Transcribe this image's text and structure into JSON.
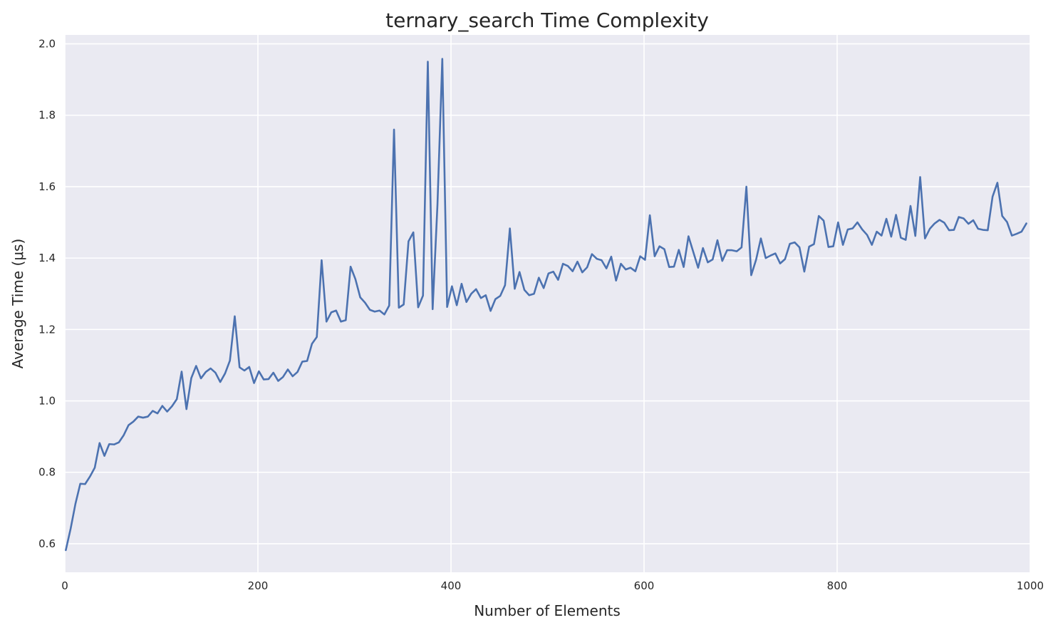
{
  "chart_data": {
    "type": "line",
    "title": "ternary_search Time Complexity",
    "xlabel": "Number of Elements",
    "ylabel": "Average Time (μs)",
    "xlim": [
      0,
      1000
    ],
    "ylim": [
      0.52,
      2.025
    ],
    "xticks": [
      0,
      200,
      400,
      600,
      800,
      1000
    ],
    "yticks": [
      0.6,
      0.8,
      1.0,
      1.2,
      1.4,
      1.6,
      1.8,
      2.0
    ],
    "grid": true,
    "colors": {
      "plot_background": "#EAEAF2",
      "grid": "#FFFFFF",
      "line": "#4C72B0"
    },
    "series": [
      {
        "x": [
          1,
          6,
          11,
          16,
          21,
          26,
          31,
          36,
          41,
          46,
          51,
          56,
          61,
          66,
          71,
          76,
          81,
          86,
          91,
          96,
          101,
          106,
          111,
          116,
          121,
          126,
          131,
          136,
          141,
          146,
          151,
          156,
          161,
          166,
          171,
          176,
          181,
          186,
          191,
          196,
          201,
          206,
          211,
          216,
          221,
          226,
          231,
          236,
          241,
          246,
          251,
          256,
          261,
          266,
          271,
          276,
          281,
          286,
          291,
          296,
          301,
          306,
          311,
          316,
          321,
          326,
          331,
          336,
          341,
          346,
          351,
          356,
          361,
          366,
          371,
          376,
          381,
          386,
          391,
          396,
          401,
          406,
          411,
          416,
          421,
          426,
          431,
          436,
          441,
          446,
          451,
          456,
          461,
          466,
          471,
          476,
          481,
          486,
          491,
          496,
          501,
          506,
          511,
          516,
          521,
          526,
          531,
          536,
          541,
          546,
          551,
          556,
          561,
          566,
          571,
          576,
          581,
          586,
          591,
          596,
          601,
          606,
          611,
          616,
          621,
          626,
          631,
          636,
          641,
          646,
          651,
          656,
          661,
          666,
          671,
          676,
          681,
          686,
          691,
          696,
          701,
          706,
          711,
          716,
          721,
          726,
          731,
          736,
          741,
          746,
          751,
          756,
          761,
          766,
          771,
          776,
          781,
          786,
          791,
          796,
          801,
          806,
          811,
          816,
          821,
          826,
          831,
          836,
          841,
          846,
          851,
          856,
          861,
          866,
          871,
          876,
          881,
          886,
          891,
          896,
          901,
          906,
          911,
          916,
          921,
          926,
          931,
          936,
          941,
          946,
          951,
          956,
          961,
          966,
          971,
          976,
          981,
          986,
          991,
          996
        ],
        "y": [
          0.582,
          0.642,
          0.712,
          0.768,
          0.767,
          0.788,
          0.813,
          0.882,
          0.846,
          0.879,
          0.878,
          0.884,
          0.904,
          0.932,
          0.942,
          0.956,
          0.953,
          0.956,
          0.972,
          0.965,
          0.986,
          0.97,
          0.985,
          1.005,
          1.082,
          0.977,
          1.064,
          1.098,
          1.063,
          1.081,
          1.091,
          1.079,
          1.053,
          1.077,
          1.113,
          1.237,
          1.094,
          1.085,
          1.095,
          1.05,
          1.083,
          1.06,
          1.061,
          1.079,
          1.056,
          1.067,
          1.088,
          1.069,
          1.081,
          1.11,
          1.112,
          1.16,
          1.179,
          1.394,
          1.222,
          1.248,
          1.253,
          1.222,
          1.226,
          1.376,
          1.341,
          1.29,
          1.275,
          1.255,
          1.25,
          1.253,
          1.242,
          1.267,
          1.76,
          1.261,
          1.27,
          1.447,
          1.472,
          1.262,
          1.295,
          1.95,
          1.257,
          1.55,
          1.958,
          1.263,
          1.321,
          1.268,
          1.328,
          1.277,
          1.3,
          1.313,
          1.288,
          1.296,
          1.252,
          1.285,
          1.294,
          1.324,
          1.483,
          1.314,
          1.361,
          1.311,
          1.296,
          1.3,
          1.345,
          1.316,
          1.357,
          1.362,
          1.339,
          1.384,
          1.378,
          1.363,
          1.39,
          1.36,
          1.374,
          1.411,
          1.398,
          1.394,
          1.371,
          1.404,
          1.337,
          1.384,
          1.368,
          1.373,
          1.363,
          1.405,
          1.395,
          1.52,
          1.405,
          1.433,
          1.425,
          1.375,
          1.376,
          1.423,
          1.375,
          1.461,
          1.417,
          1.373,
          1.428,
          1.388,
          1.396,
          1.45,
          1.392,
          1.422,
          1.422,
          1.419,
          1.43,
          1.6,
          1.352,
          1.395,
          1.455,
          1.4,
          1.407,
          1.413,
          1.385,
          1.397,
          1.44,
          1.444,
          1.43,
          1.362,
          1.432,
          1.439,
          1.518,
          1.505,
          1.431,
          1.433,
          1.5,
          1.437,
          1.48,
          1.483,
          1.5,
          1.48,
          1.465,
          1.437,
          1.474,
          1.463,
          1.51,
          1.46,
          1.521,
          1.457,
          1.451,
          1.546,
          1.462,
          1.627,
          1.455,
          1.482,
          1.497,
          1.507,
          1.499,
          1.478,
          1.479,
          1.515,
          1.511,
          1.496,
          1.506,
          1.482,
          1.479,
          1.478,
          1.572,
          1.611,
          1.518,
          1.501,
          1.463,
          1.468,
          1.474,
          1.497
        ]
      }
    ]
  }
}
